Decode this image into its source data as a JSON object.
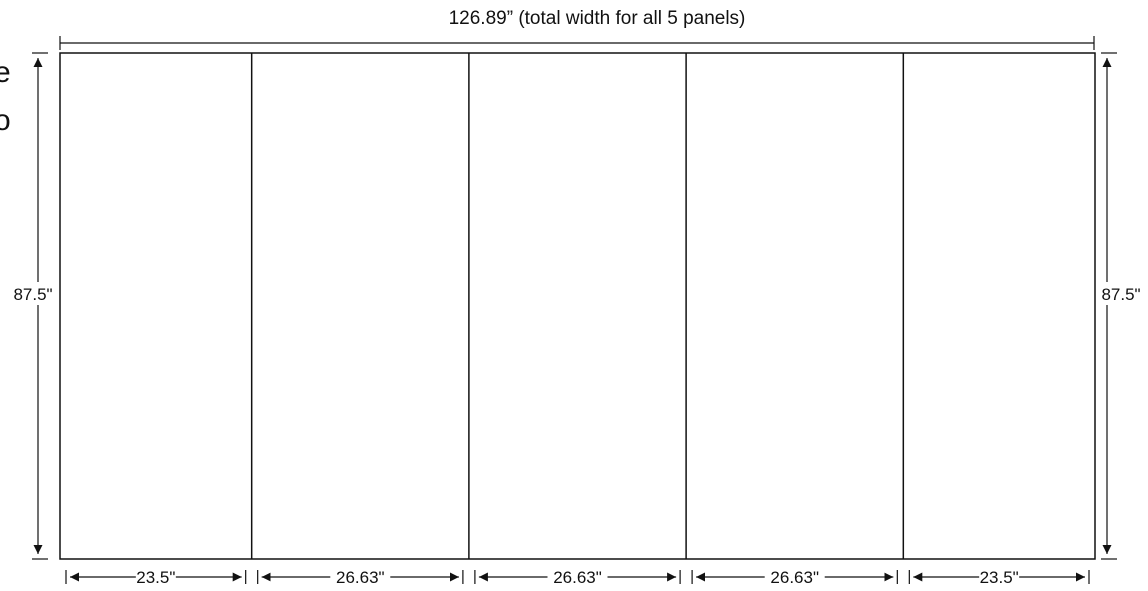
{
  "total_width_label": "126.89” (total width for all 5 panels)",
  "height_left_label": "87.5\"",
  "height_right_label": "87.5\"",
  "cropped_left_text": [
    "e",
    "o"
  ],
  "panels": [
    {
      "id": "panel-1",
      "width_in": 23.5,
      "label": "23.5\""
    },
    {
      "id": "panel-2",
      "width_in": 26.63,
      "label": "26.63\""
    },
    {
      "id": "panel-3",
      "width_in": 26.63,
      "label": "26.63\""
    },
    {
      "id": "panel-4",
      "width_in": 26.63,
      "label": "26.63\""
    },
    {
      "id": "panel-5",
      "width_in": 23.5,
      "label": "23.5\""
    }
  ],
  "colors": {
    "line": "#111111",
    "background": "#ffffff"
  }
}
